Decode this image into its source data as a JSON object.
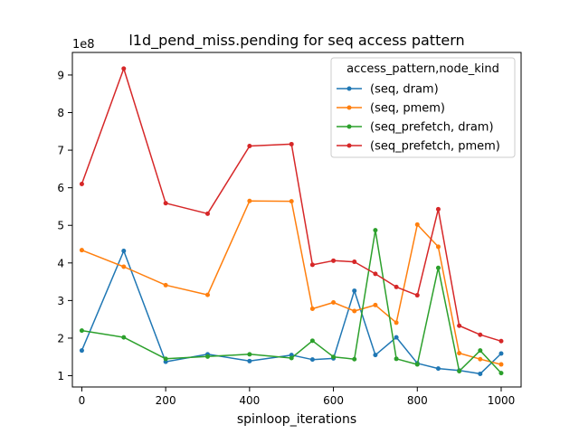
{
  "chart_data": {
    "type": "line",
    "title": "l1d_pend_miss.pending for seq access pattern",
    "xlabel": "spinloop_iterations",
    "ylabel": "",
    "y_scale_label": "1e8",
    "xlim": [
      -22.5,
      1047.5
    ],
    "ylim": [
      0.7,
      9.6
    ],
    "x_ticks": [
      0,
      200,
      400,
      600,
      800,
      1000
    ],
    "x_tick_labels": [
      "0",
      "200",
      "400",
      "600",
      "800",
      "1000"
    ],
    "y_ticks": [
      1,
      2,
      3,
      4,
      5,
      6,
      7,
      8,
      9
    ],
    "y_tick_labels": [
      "1",
      "2",
      "3",
      "4",
      "5",
      "6",
      "7",
      "8",
      "9"
    ],
    "grid": false,
    "legend_title": "access_pattern,node_kind",
    "legend_position": "top-right",
    "x": [
      0,
      100,
      200,
      300,
      400,
      500,
      550,
      600,
      650,
      700,
      750,
      800,
      850,
      900,
      950,
      1000
    ],
    "series": [
      {
        "name": "(seq, dram)",
        "color": "#1f77b4",
        "values": [
          1.67,
          4.32,
          1.37,
          1.57,
          1.39,
          1.55,
          1.43,
          1.46,
          3.26,
          1.55,
          2.02,
          1.33,
          1.19,
          1.14,
          1.05,
          1.59
        ]
      },
      {
        "name": "(seq, pmem)",
        "color": "#ff7f0e",
        "values": [
          4.34,
          3.9,
          3.41,
          3.15,
          5.65,
          5.64,
          2.78,
          2.95,
          2.72,
          2.88,
          2.41,
          5.02,
          4.43,
          1.6,
          1.44,
          1.3
        ]
      },
      {
        "name": "(seq_prefetch, dram)",
        "color": "#2ca02c",
        "values": [
          2.2,
          2.02,
          1.45,
          1.51,
          1.57,
          1.47,
          1.93,
          1.5,
          1.44,
          4.87,
          1.45,
          1.3,
          3.87,
          1.12,
          1.67,
          1.07
        ]
      },
      {
        "name": "(seq_prefetch, pmem)",
        "color": "#d62728",
        "values": [
          6.1,
          9.17,
          5.59,
          5.31,
          7.11,
          7.16,
          3.95,
          4.06,
          4.03,
          3.71,
          3.36,
          3.14,
          5.43,
          2.33,
          2.09,
          1.92
        ]
      }
    ]
  }
}
